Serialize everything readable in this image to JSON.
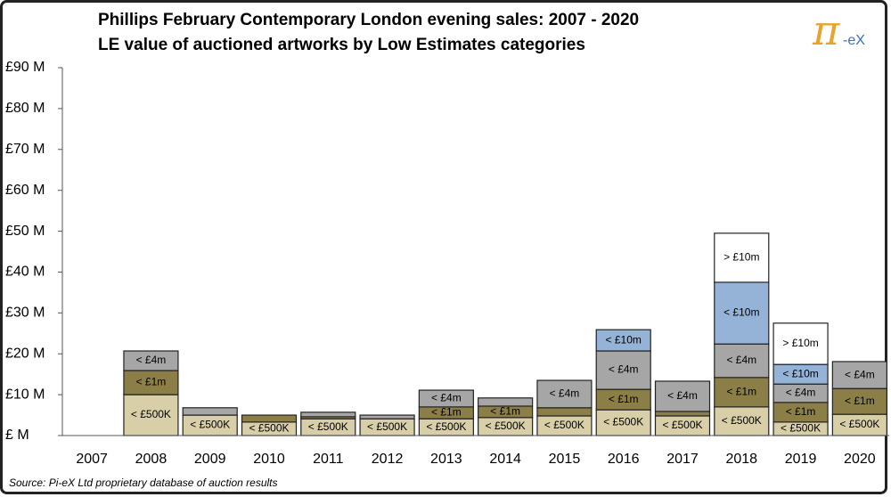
{
  "chart_data": {
    "type": "stacked_bar",
    "title": "Phillips February Contemporary London evening sales: 2007 - 2020",
    "subtitle": "LE value of auctioned artworks by Low Estimates categories",
    "logo_symbol": "π",
    "logo_text": "-eX",
    "source": "Source:  Pi-eX Ltd proprietary database of auction results",
    "categories": [
      "2007",
      "2008",
      "2009",
      "2010",
      "2011",
      "2012",
      "2013",
      "2014",
      "2015",
      "2016",
      "2017",
      "2018",
      "2019",
      "2020"
    ],
    "series": [
      {
        "name": "< £500K",
        "color": "#d8cfa9",
        "values": [
          null,
          10.0,
          5.0,
          3.3,
          4.1,
          4.1,
          4.1,
          4.4,
          4.8,
          6.3,
          4.8,
          7.0,
          3.3,
          5.2
        ]
      },
      {
        "name": "< £1m",
        "color": "#8b7e46",
        "values": [
          null,
          5.9,
          null,
          1.7,
          0.5,
          null,
          2.9,
          2.8,
          2.0,
          5.0,
          1.1,
          7.2,
          4.8,
          6.3
        ]
      },
      {
        "name": "< £4m",
        "color": "#a6a6a6",
        "values": [
          null,
          4.8,
          1.8,
          null,
          1.1,
          0.9,
          4.1,
          2.0,
          6.7,
          9.4,
          7.4,
          8.2,
          4.5,
          6.6
        ]
      },
      {
        "name": "< £10m",
        "color": "#95b3d7",
        "values": [
          null,
          null,
          null,
          null,
          null,
          null,
          null,
          null,
          null,
          5.2,
          null,
          15.1,
          4.8,
          null
        ]
      },
      {
        "name": "> £10m",
        "color": "#ffffff",
        "values": [
          null,
          null,
          null,
          null,
          null,
          null,
          null,
          null,
          null,
          null,
          null,
          12.0,
          10.1,
          null
        ]
      }
    ],
    "ylim": [
      0,
      90
    ],
    "yticks": [
      {
        "value": 0,
        "label": "£ M"
      },
      {
        "value": 10,
        "label": "£10 M"
      },
      {
        "value": 20,
        "label": "£20 M"
      },
      {
        "value": 30,
        "label": "£30 M"
      },
      {
        "value": 40,
        "label": "£40 M"
      },
      {
        "value": 50,
        "label": "£50 M"
      },
      {
        "value": 60,
        "label": "£60 M"
      },
      {
        "value": 70,
        "label": "£70 M"
      },
      {
        "value": 80,
        "label": "£80 M"
      },
      {
        "value": 90,
        "label": "£90 M"
      }
    ],
    "grid": false
  }
}
